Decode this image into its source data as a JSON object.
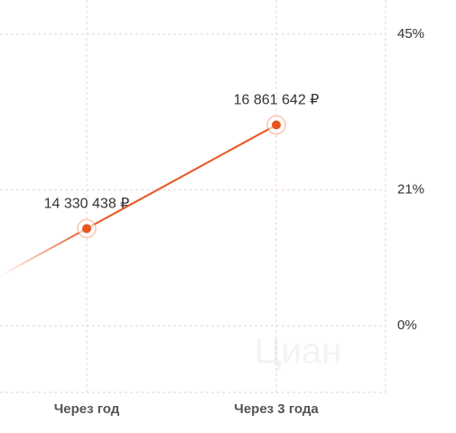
{
  "chart_data": {
    "type": "line",
    "categories": [
      "Через год",
      "Через 3 года"
    ],
    "series": [
      {
        "color": "#e8551f",
        "values": [
          15,
          31
        ]
      }
    ],
    "annotations": [
      "14 330 438 ₽",
      "16 861 642 ₽"
    ],
    "ylim": [
      -10,
      50
    ],
    "yticks": [
      {
        "value": 0,
        "label": "0%"
      },
      {
        "value": 21,
        "label": "21%"
      },
      {
        "value": 45,
        "label": "45%"
      }
    ],
    "grid": true,
    "watermark": "Циан"
  }
}
